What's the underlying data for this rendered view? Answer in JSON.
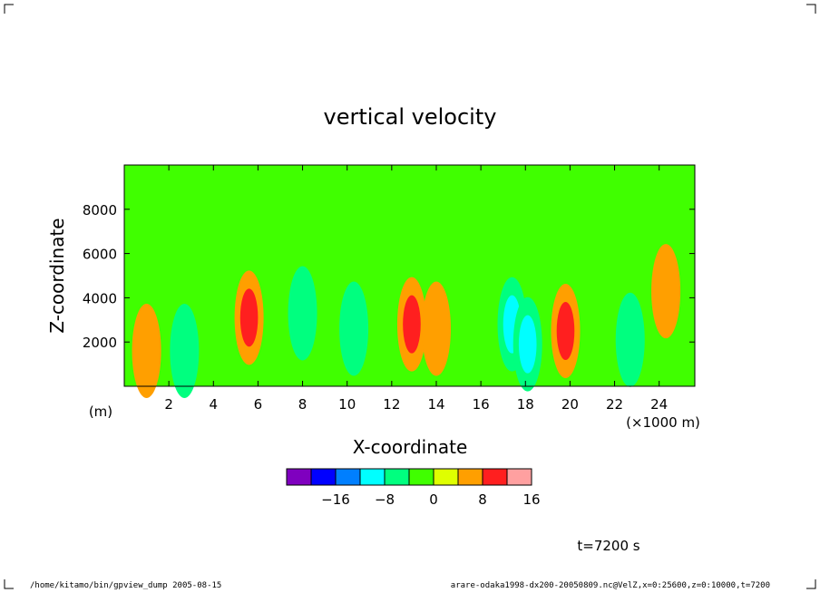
{
  "chart_data": {
    "type": "heatmap",
    "title": "vertical velocity",
    "xlabel": "X-coordinate",
    "ylabel": "Z-coordinate",
    "x_unit": "(×1000 m)",
    "y_unit": "(m)",
    "xlim": [
      0,
      25.6
    ],
    "ylim": [
      0,
      10000
    ],
    "x_ticks": [
      2,
      4,
      6,
      8,
      10,
      12,
      14,
      16,
      18,
      20,
      22,
      24
    ],
    "y_ticks": [
      2000,
      4000,
      6000,
      8000
    ],
    "colorbar": {
      "tick_labels": [
        "−16",
        "−8",
        "0",
        "8",
        "16"
      ],
      "tick_values": [
        -16,
        -8,
        0,
        8,
        16
      ],
      "levels": [
        -24,
        -20,
        -16,
        -12,
        -8,
        -4,
        0,
        4,
        8,
        12,
        16,
        20
      ],
      "colors": [
        "#7f00bf",
        "#0000ff",
        "#007fff",
        "#00ffff",
        "#00ff7f",
        "#40ff00",
        "#dfff00",
        "#ff9f00",
        "#ff1f1f",
        "#ffa0a0"
      ]
    },
    "features": [
      {
        "x": 1.0,
        "z": 1600,
        "peak": 6
      },
      {
        "x": 2.7,
        "z": 1600,
        "peak": -6
      },
      {
        "x": 5.6,
        "z": 3100,
        "peak": 10
      },
      {
        "x": 8.0,
        "z": 3300,
        "peak": -5
      },
      {
        "x": 10.3,
        "z": 2600,
        "peak": -5
      },
      {
        "x": 12.9,
        "z": 2800,
        "peak": 10
      },
      {
        "x": 14.0,
        "z": 2600,
        "peak": 6
      },
      {
        "x": 17.4,
        "z": 2800,
        "peak": -11
      },
      {
        "x": 18.1,
        "z": 1900,
        "peak": -10
      },
      {
        "x": 19.8,
        "z": 2500,
        "peak": 10
      },
      {
        "x": 22.7,
        "z": 2100,
        "peak": -6
      },
      {
        "x": 24.3,
        "z": 4300,
        "peak": 4
      }
    ]
  },
  "time_label": "t=7200 s",
  "footer": {
    "left": "/home/kitamo/bin/gpview_dump  2005-08-15",
    "right": "arare-odaka1998-dx200-20050809.nc@VelZ,x=0:25600,z=0:10000,t=7200"
  }
}
